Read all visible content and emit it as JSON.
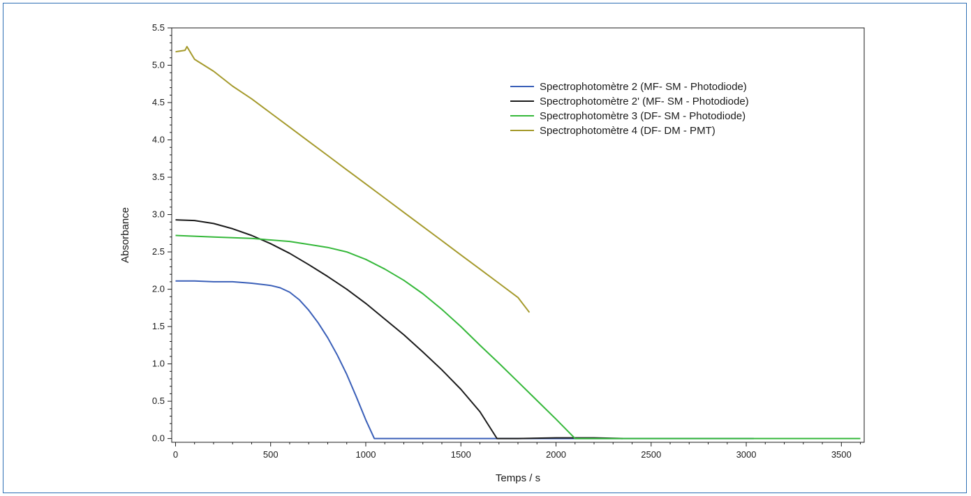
{
  "chart_data": {
    "type": "line",
    "title": "",
    "xlabel": "Temps / s",
    "ylabel": "Absorbance",
    "xlim": [
      -20,
      3620
    ],
    "ylim": [
      -0.05,
      5.5
    ],
    "xticks": [
      0,
      500,
      1000,
      1500,
      2000,
      2500,
      3000,
      3500
    ],
    "yticks": [
      "0.0",
      "0.5",
      "1.0",
      "1.5",
      "2.0",
      "2.5",
      "3.0",
      "3.5",
      "4.0",
      "4.5",
      "5.0",
      "5.5"
    ],
    "grid": false,
    "legend_position": "top-right",
    "series": [
      {
        "name": "Spectrophotomètre 2 (MF- SM - Photodiode)",
        "color": "#3a5fb8",
        "x": [
          0,
          100,
          200,
          300,
          400,
          500,
          550,
          600,
          650,
          700,
          750,
          800,
          850,
          900,
          950,
          1000,
          1045,
          1100,
          1500,
          2000,
          2500,
          3040
        ],
        "y": [
          2.11,
          2.11,
          2.1,
          2.1,
          2.08,
          2.05,
          2.02,
          1.96,
          1.86,
          1.72,
          1.55,
          1.35,
          1.12,
          0.86,
          0.56,
          0.25,
          0.0,
          0.0,
          0.0,
          0.0,
          0.0,
          0.0
        ]
      },
      {
        "name": "Spectrophotomètre 2' (MF- SM - Photodiode)",
        "color": "#1a1a1a",
        "x": [
          0,
          100,
          200,
          300,
          400,
          500,
          600,
          700,
          800,
          900,
          1000,
          1100,
          1200,
          1300,
          1400,
          1500,
          1600,
          1690,
          1800,
          2000,
          2200,
          2350
        ],
        "y": [
          2.93,
          2.92,
          2.88,
          2.81,
          2.72,
          2.61,
          2.48,
          2.33,
          2.17,
          2.0,
          1.81,
          1.6,
          1.39,
          1.16,
          0.92,
          0.66,
          0.36,
          0.0,
          0.0,
          0.01,
          0.01,
          0.0
        ]
      },
      {
        "name": "Spectrophotomètre 3 (DF- SM - Photodiode)",
        "color": "#35b83a",
        "x": [
          0,
          100,
          200,
          300,
          400,
          500,
          600,
          700,
          800,
          900,
          1000,
          1100,
          1200,
          1300,
          1400,
          1500,
          1600,
          1700,
          1800,
          1900,
          2000,
          2100,
          2200,
          2500,
          3000,
          3600
        ],
        "y": [
          2.72,
          2.71,
          2.7,
          2.69,
          2.68,
          2.66,
          2.64,
          2.6,
          2.56,
          2.5,
          2.4,
          2.27,
          2.12,
          1.94,
          1.73,
          1.5,
          1.25,
          1.01,
          0.76,
          0.51,
          0.26,
          0.0,
          0.0,
          0.0,
          0.0,
          0.0
        ]
      },
      {
        "name": "Spectrophotomètre 4 (DF- DM - PMT)",
        "color": "#a59a2c",
        "x": [
          0,
          50,
          60,
          100,
          200,
          300,
          400,
          500,
          600,
          700,
          800,
          900,
          1000,
          1100,
          1200,
          1300,
          1400,
          1500,
          1600,
          1700,
          1800,
          1860
        ],
        "y": [
          5.18,
          5.2,
          5.25,
          5.08,
          4.92,
          4.72,
          4.55,
          4.36,
          4.17,
          3.98,
          3.79,
          3.6,
          3.41,
          3.22,
          3.03,
          2.84,
          2.65,
          2.46,
          2.27,
          2.08,
          1.89,
          1.69
        ]
      }
    ]
  }
}
